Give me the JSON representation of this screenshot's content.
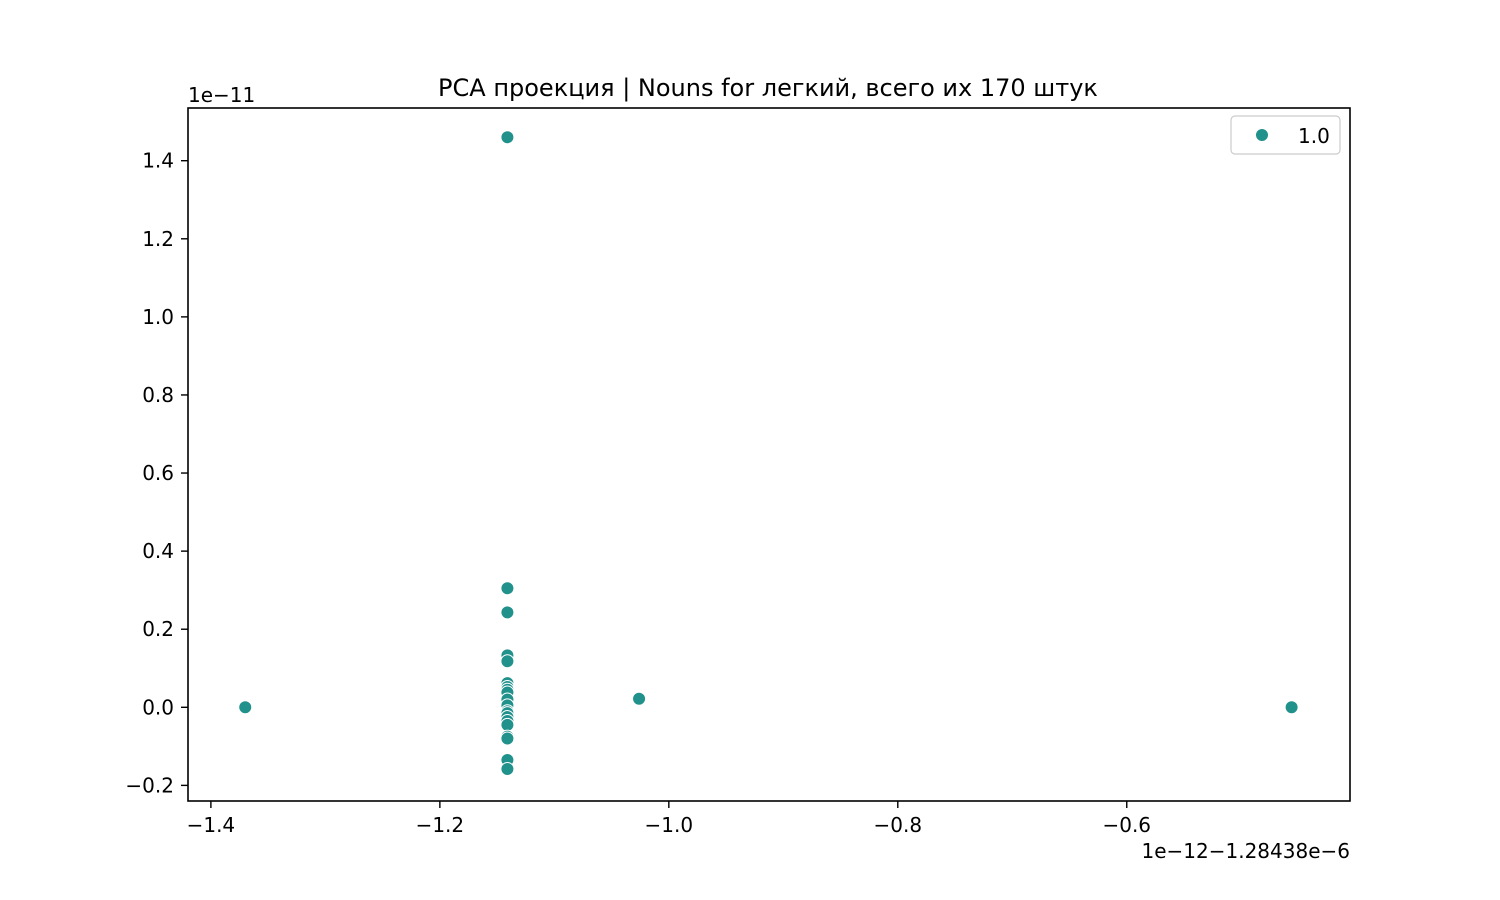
{
  "chart_data": {
    "type": "scatter",
    "title": "PCA проекция | Nouns for легкий, всего их 170 штук",
    "xlabel": "",
    "ylabel": "",
    "x_offset_text": "1e−12−1.28438e−6",
    "y_offset_text": "1e−11",
    "xlim": [
      -1.42,
      -0.405
    ],
    "ylim": [
      -0.24,
      1.535
    ],
    "x_ticks": [
      -1.4,
      -1.2,
      -1.0,
      -0.8,
      -0.6
    ],
    "x_tick_labels": [
      "−1.4",
      "−1.2",
      "−1.0",
      "−0.8",
      "−0.6"
    ],
    "y_ticks": [
      -0.2,
      0.0,
      0.2,
      0.4,
      0.6,
      0.8,
      1.0,
      1.2,
      1.4
    ],
    "y_tick_labels": [
      "−0.2",
      "0.0",
      "0.2",
      "0.4",
      "0.6",
      "0.8",
      "1.0",
      "1.2",
      "1.4"
    ],
    "grid": false,
    "legend_position": "top-right",
    "series": [
      {
        "name": "1.0",
        "color": "#21918c",
        "points": [
          {
            "x": -1.141,
            "y": 1.46
          },
          {
            "x": -1.141,
            "y": 0.305
          },
          {
            "x": -1.141,
            "y": 0.243
          },
          {
            "x": -1.141,
            "y": 0.133
          },
          {
            "x": -1.141,
            "y": 0.118
          },
          {
            "x": -1.141,
            "y": 0.062
          },
          {
            "x": -1.141,
            "y": 0.052
          },
          {
            "x": -1.141,
            "y": 0.045
          },
          {
            "x": -1.141,
            "y": 0.038
          },
          {
            "x": -1.141,
            "y": 0.02
          },
          {
            "x": -1.141,
            "y": 0.005
          },
          {
            "x": -1.141,
            "y": -0.01
          },
          {
            "x": -1.141,
            "y": -0.015
          },
          {
            "x": -1.141,
            "y": -0.025
          },
          {
            "x": -1.141,
            "y": -0.035
          },
          {
            "x": -1.141,
            "y": -0.045
          },
          {
            "x": -1.141,
            "y": -0.075
          },
          {
            "x": -1.141,
            "y": -0.08
          },
          {
            "x": -1.141,
            "y": -0.135
          },
          {
            "x": -1.141,
            "y": -0.158
          },
          {
            "x": -1.37,
            "y": 0.0
          },
          {
            "x": -1.026,
            "y": 0.022
          },
          {
            "x": -0.456,
            "y": 0.0
          }
        ]
      }
    ]
  }
}
